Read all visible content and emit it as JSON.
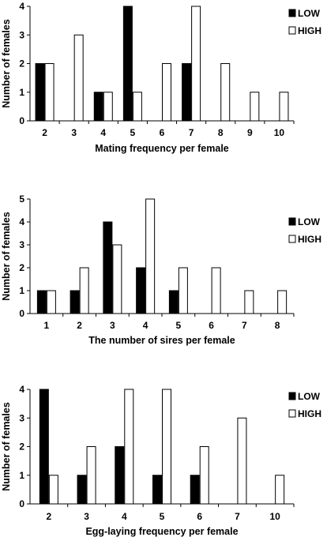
{
  "colors": {
    "low": "#000000",
    "high": "#ffffff",
    "stroke": "#000000"
  },
  "chart_data": [
    {
      "type": "bar",
      "xlabel": "Mating frequency per female",
      "ylabel": "Number of females",
      "ylim": [
        0,
        4
      ],
      "yticks": [
        "0",
        "1",
        "2",
        "3",
        "4"
      ],
      "categories": [
        "2",
        "3",
        "4",
        "5",
        "6",
        "7",
        "8",
        "9",
        "10"
      ],
      "legend_position": "top-right",
      "series": [
        {
          "name": "LOW",
          "values": [
            2,
            0,
            1,
            4,
            0,
            2,
            0,
            0,
            0
          ]
        },
        {
          "name": "HIGH",
          "values": [
            2,
            3,
            1,
            1,
            2,
            4,
            2,
            1,
            1
          ]
        }
      ]
    },
    {
      "type": "bar",
      "xlabel": "The number of sires per female",
      "ylabel": "Number of females",
      "ylim": [
        0,
        5
      ],
      "yticks": [
        "0",
        "1",
        "2",
        "3",
        "4",
        "5"
      ],
      "categories": [
        "1",
        "2",
        "3",
        "4",
        "5",
        "6",
        "7",
        "8"
      ],
      "legend_position": "top-right",
      "series": [
        {
          "name": "LOW",
          "values": [
            1,
            1,
            4,
            2,
            1,
            0,
            0,
            0
          ]
        },
        {
          "name": "HIGH",
          "values": [
            1,
            2,
            3,
            5,
            2,
            2,
            1,
            1
          ]
        }
      ]
    },
    {
      "type": "bar",
      "xlabel": "Egg-laying frequency per female",
      "ylabel": "Number of females",
      "ylim": [
        0,
        4
      ],
      "yticks": [
        "0",
        "1",
        "2",
        "3",
        "4"
      ],
      "categories": [
        "2",
        "3",
        "4",
        "5",
        "6",
        "7",
        "10"
      ],
      "legend_position": "top-right",
      "series": [
        {
          "name": "LOW",
          "values": [
            4,
            1,
            2,
            1,
            1,
            0,
            0
          ]
        },
        {
          "name": "HIGH",
          "values": [
            1,
            2,
            4,
            4,
            2,
            3,
            1
          ]
        }
      ]
    }
  ]
}
